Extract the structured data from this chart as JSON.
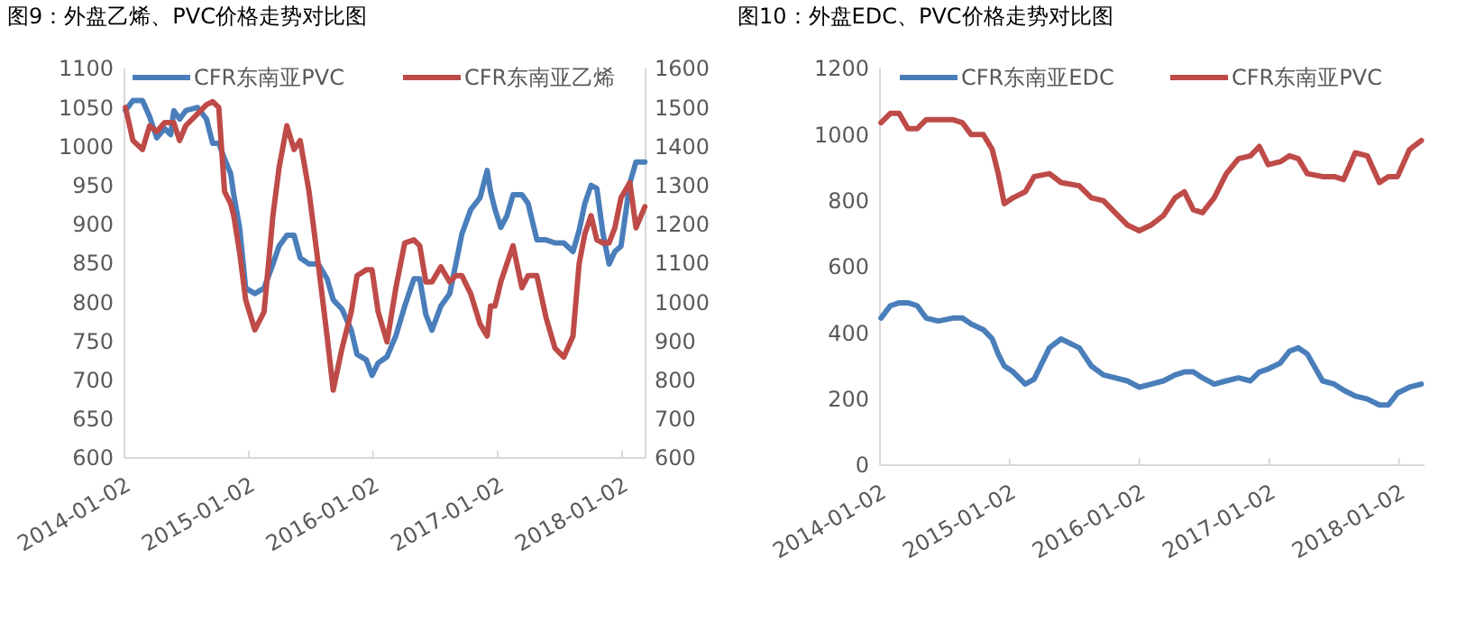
{
  "chart_data": [
    {
      "type": "line",
      "title": "图9：外盘乙烯、PVC价格走势对比图",
      "legend": "top",
      "x": [
        "2014-01-05",
        "2014-01-27",
        "2014-02-24",
        "2014-03-17",
        "2014-04-07",
        "2014-04-30",
        "2014-05-18",
        "2014-05-27",
        "2014-06-13",
        "2014-07-01",
        "2014-08-05",
        "2014-08-31",
        "2014-09-18",
        "2014-10-06",
        "2014-10-23",
        "2014-11-10",
        "2014-11-19",
        "2014-12-06",
        "2014-12-24",
        "2015-01-20",
        "2015-02-16",
        "2015-03-14",
        "2015-04-01",
        "2015-04-24",
        "2015-05-15",
        "2015-06-02",
        "2015-06-28",
        "2015-07-25",
        "2015-08-20",
        "2015-09-07",
        "2015-10-03",
        "2015-10-30",
        "2015-11-16",
        "2015-12-13",
        "2015-12-30",
        "2016-01-17",
        "2016-02-12",
        "2016-03-09",
        "2016-04-04",
        "2016-05-01",
        "2016-05-18",
        "2016-06-05",
        "2016-06-23",
        "2016-07-19",
        "2016-08-14",
        "2016-09-01",
        "2016-09-19",
        "2016-10-15",
        "2016-11-11",
        "2016-12-02",
        "2016-12-12",
        "2016-12-25",
        "2017-01-11",
        "2017-01-29",
        "2017-02-16",
        "2017-03-14",
        "2017-04-01",
        "2017-04-27",
        "2017-05-24",
        "2017-06-19",
        "2017-07-15",
        "2017-08-11",
        "2017-08-29",
        "2017-09-15",
        "2017-10-03",
        "2017-10-20",
        "2017-11-07",
        "2017-11-25",
        "2017-12-12",
        "2017-12-30",
        "2018-01-25",
        "2018-02-12",
        "2018-03-10"
      ],
      "xlim": [
        "2014-01-02",
        "2018-03-12"
      ],
      "xticks": [
        "2014-01-02",
        "2015-01-02",
        "2016-01-02",
        "2017-01-02",
        "2018-01-02"
      ],
      "ylim": [
        600,
        1100
      ],
      "yticks": [
        600,
        650,
        700,
        750,
        800,
        850,
        900,
        950,
        1000,
        1050,
        1100
      ],
      "y2lim": [
        600,
        1600
      ],
      "y2ticks": [
        600,
        700,
        800,
        900,
        1000,
        1100,
        1200,
        1300,
        1400,
        1500,
        1600
      ],
      "series": [
        {
          "name": "CFR东南亚PVC",
          "color": "#4a7ebb",
          "values": [
            1046,
            1059,
            1059,
            1038,
            1011,
            1023,
            1015,
            1046,
            1035,
            1046,
            1050,
            1035,
            1004,
            1004,
            984,
            965,
            938,
            896,
            818,
            811,
            818,
            849,
            872,
            886,
            886,
            857,
            849,
            849,
            830,
            803,
            791,
            764,
            733,
            726,
            706,
            722,
            730,
            757,
            795,
            830,
            830,
            784,
            764,
            795,
            811,
            849,
            888,
            919,
            934,
            969,
            942,
            919,
            896,
            911,
            938,
            938,
            927,
            880,
            880,
            876,
            876,
            865,
            892,
            927,
            950,
            946,
            888,
            849,
            865,
            872,
            953,
            980,
            980
          ]
        },
        {
          "name": "CFR东南亚乙烯",
          "color": "#be4b48",
          "axis": "y2",
          "values": [
            1500,
            1415,
            1392,
            1453,
            1438,
            1461,
            1461,
            1461,
            1415,
            1453,
            1484,
            1507,
            1515,
            1500,
            1284,
            1253,
            1222,
            1129,
            1006,
            929,
            975,
            1222,
            1345,
            1453,
            1392,
            1415,
            1284,
            1099,
            913,
            774,
            882,
            975,
            1068,
            1083,
            1083,
            975,
            898,
            1037,
            1152,
            1160,
            1145,
            1052,
            1052,
            1091,
            1052,
            1068,
            1068,
            1021,
            944,
            913,
            990,
            990,
            1052,
            1099,
            1145,
            1037,
            1068,
            1068,
            960,
            882,
            859,
            913,
            1099,
            1176,
            1222,
            1160,
            1152,
            1152,
            1191,
            1268,
            1307,
            1191,
            1245
          ]
        }
      ]
    },
    {
      "type": "line",
      "title": "图10：外盘EDC、PVC价格走势对比图",
      "legend": "top",
      "x": [
        "2014-01-05",
        "2014-01-31",
        "2014-02-25",
        "2014-03-22",
        "2014-04-17",
        "2014-05-12",
        "2014-06-15",
        "2014-07-27",
        "2014-08-22",
        "2014-09-16",
        "2014-10-20",
        "2014-11-14",
        "2014-12-01",
        "2014-12-18",
        "2015-01-12",
        "2015-02-15",
        "2015-03-12",
        "2015-04-24",
        "2015-05-27",
        "2015-07-17",
        "2015-08-20",
        "2015-09-23",
        "2015-10-26",
        "2015-11-29",
        "2016-01-02",
        "2016-02-05",
        "2016-03-10",
        "2016-04-12",
        "2016-05-08",
        "2016-06-02",
        "2016-06-28",
        "2016-07-31",
        "2016-09-03",
        "2016-10-07",
        "2016-11-10",
        "2016-12-05",
        "2016-12-30",
        "2017-02-02",
        "2017-02-28",
        "2017-03-25",
        "2017-04-19",
        "2017-06-01",
        "2017-07-04",
        "2017-07-30",
        "2017-09-01",
        "2017-10-05",
        "2017-11-08",
        "2017-12-03",
        "2017-12-29",
        "2018-02-01",
        "2018-03-06"
      ],
      "xlim": [
        "2014-01-02",
        "2018-03-15"
      ],
      "xticks": [
        "2014-01-02",
        "2015-01-02",
        "2016-01-02",
        "2017-01-02",
        "2018-01-02"
      ],
      "ylim": [
        0,
        1200
      ],
      "yticks": [
        0,
        200,
        400,
        600,
        800,
        1000,
        1200
      ],
      "series": [
        {
          "name": "CFR东南亚EDC",
          "color": "#4a7ebb",
          "values": [
            445,
            482,
            491,
            491,
            482,
            445,
            436,
            445,
            445,
            427,
            410,
            382,
            336,
            300,
            282,
            245,
            260,
            355,
            382,
            355,
            300,
            273,
            264,
            255,
            236,
            245,
            255,
            273,
            282,
            282,
            264,
            245,
            255,
            264,
            255,
            282,
            291,
            309,
            345,
            355,
            336,
            255,
            245,
            227,
            209,
            200,
            182,
            182,
            218,
            236,
            245
          ]
        },
        {
          "name": "CFR东南亚PVC",
          "color": "#be4b48",
          "values": [
            1036,
            1064,
            1064,
            1018,
            1018,
            1045,
            1045,
            1045,
            1036,
            1000,
            1000,
            955,
            882,
            791,
            809,
            827,
            873,
            882,
            855,
            845,
            809,
            800,
            764,
            727,
            709,
            727,
            755,
            809,
            827,
            773,
            764,
            809,
            882,
            927,
            936,
            964,
            909,
            918,
            936,
            927,
            882,
            873,
            873,
            864,
            945,
            936,
            855,
            873,
            873,
            955,
            982
          ]
        }
      ]
    }
  ]
}
